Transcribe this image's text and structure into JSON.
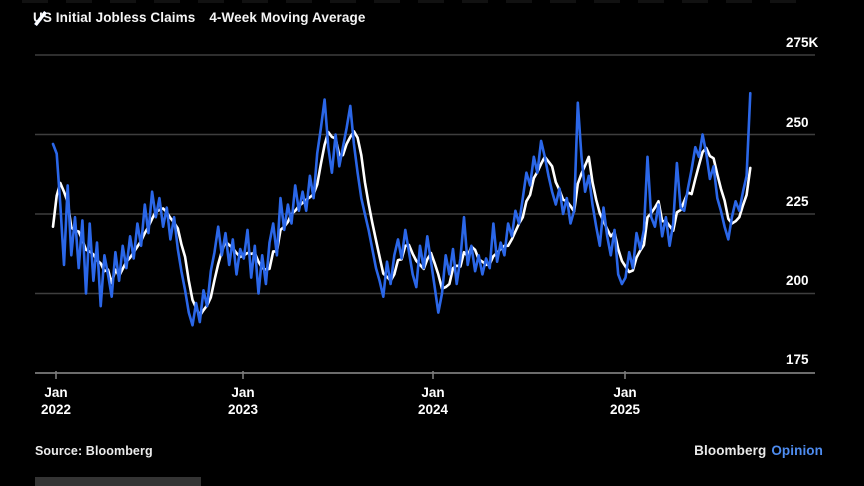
{
  "legend": {
    "items": [
      {
        "label": "US Initial Jobless Claims",
        "color": "#2b67e8"
      },
      {
        "label": "4-Week Moving Average",
        "color": "#ffffff"
      }
    ]
  },
  "y_axis": {
    "labels": [
      "275K",
      "250",
      "225",
      "200",
      "175"
    ]
  },
  "x_axis": {
    "ticks": [
      {
        "month": "Jan",
        "year": "2022"
      },
      {
        "month": "Jan",
        "year": "2023"
      },
      {
        "month": "Jan",
        "year": "2024"
      },
      {
        "month": "Jan",
        "year": "2025"
      }
    ]
  },
  "footer": {
    "source": "Source: Bloomberg",
    "brand": "Bloomberg",
    "brand_suffix": "Opinion"
  },
  "chart_data": {
    "type": "line",
    "title": "",
    "legend_position": "top-left",
    "grid": "horizontal",
    "background": "#000000",
    "x": {
      "unit": "week",
      "start": "Jan 2022",
      "end": "Sep 2025",
      "tick_labels": [
        "Jan 2022",
        "Jan 2023",
        "Jan 2024",
        "Jan 2025"
      ]
    },
    "y": {
      "unit": "thousands of claims",
      "lim": [
        175,
        275
      ],
      "tick_values": [
        275,
        250,
        225,
        200,
        175
      ],
      "tick_labels": [
        "275K",
        "250",
        "225",
        "200",
        "175"
      ]
    },
    "series": [
      {
        "name": "US Initial Jobless Claims",
        "color": "#2b67e8",
        "unit": "K",
        "values": [
          247,
          244,
          228,
          209,
          234,
          212,
          224,
          208,
          223,
          200,
          222,
          204,
          216,
          196,
          212,
          206,
          199,
          213,
          204,
          215,
          208,
          218,
          211,
          222,
          215,
          228,
          219,
          232,
          224,
          230,
          221,
          227,
          217,
          224,
          214,
          207,
          201,
          194,
          190,
          197,
          191,
          201,
          196,
          207,
          213,
          221,
          212,
          219,
          209,
          217,
          206,
          214,
          211,
          220,
          205,
          215,
          200,
          212,
          203,
          216,
          222,
          212,
          230,
          220,
          228,
          222,
          234,
          226,
          232,
          226,
          237,
          230,
          244,
          252,
          261,
          246,
          238,
          250,
          240,
          246,
          252,
          259,
          247,
          238,
          230,
          225,
          220,
          214,
          208,
          204,
          199,
          210,
          203,
          212,
          217,
          211,
          220,
          213,
          206,
          202,
          215,
          208,
          218,
          210,
          202,
          194,
          200,
          212,
          206,
          214,
          203,
          211,
          224,
          209,
          215,
          207,
          212,
          206,
          211,
          208,
          222,
          210,
          216,
          212,
          222,
          218,
          226,
          222,
          230,
          238,
          234,
          243,
          238,
          248,
          243,
          237,
          232,
          228,
          233,
          225,
          230,
          222,
          226,
          260,
          243,
          232,
          237,
          228,
          221,
          215,
          227,
          218,
          212,
          220,
          206,
          203,
          205,
          213,
          208,
          219,
          214,
          220,
          243,
          224,
          221,
          228,
          218,
          224,
          215,
          222,
          241,
          227,
          226,
          233,
          239,
          246,
          243,
          250,
          244,
          236,
          240,
          230,
          226,
          221,
          217,
          224,
          229,
          226,
          232,
          237,
          263
        ]
      },
      {
        "name": "4-Week Moving Average",
        "color": "#ffffff",
        "unit": "K",
        "derived_from": "trailing 4-week mean of US Initial Jobless Claims",
        "seed_prior_weeks": [
          205,
          212,
          220
        ]
      }
    ]
  }
}
